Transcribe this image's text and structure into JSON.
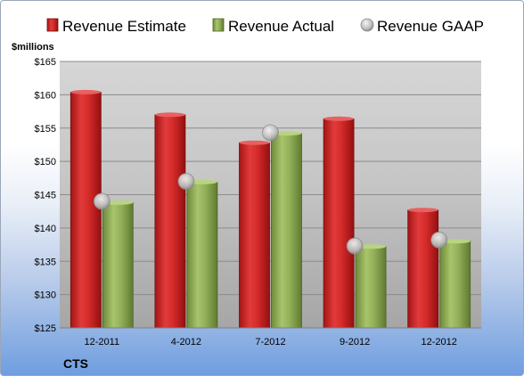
{
  "chart_data": {
    "type": "bar",
    "ylabel": "$millions",
    "company": "CTS",
    "categories": [
      "12-2011",
      "4-2012",
      "7-2012",
      "9-2012",
      "12-2012"
    ],
    "ylim": [
      125,
      165
    ],
    "yticks": [
      125,
      130,
      135,
      140,
      145,
      150,
      155,
      160,
      165
    ],
    "ytick_labels": [
      "$125",
      "$130",
      "$135",
      "$140",
      "$145",
      "$150",
      "$155",
      "$160",
      "$165"
    ],
    "grid": true,
    "legend_position": "top",
    "series": [
      {
        "name": "Revenue Estimate",
        "kind": "bar",
        "color": "#d42a2a",
        "values": [
          160.4,
          157.0,
          152.8,
          156.4,
          142.7
        ]
      },
      {
        "name": "Revenue Actual",
        "kind": "bar",
        "color": "#8fac55",
        "values": [
          143.8,
          146.9,
          154.2,
          137.2,
          138.0
        ]
      },
      {
        "name": "Revenue GAAP",
        "kind": "marker",
        "color": "#c8c8c8",
        "values": [
          144.0,
          147.0,
          154.3,
          137.3,
          138.2
        ]
      }
    ]
  }
}
